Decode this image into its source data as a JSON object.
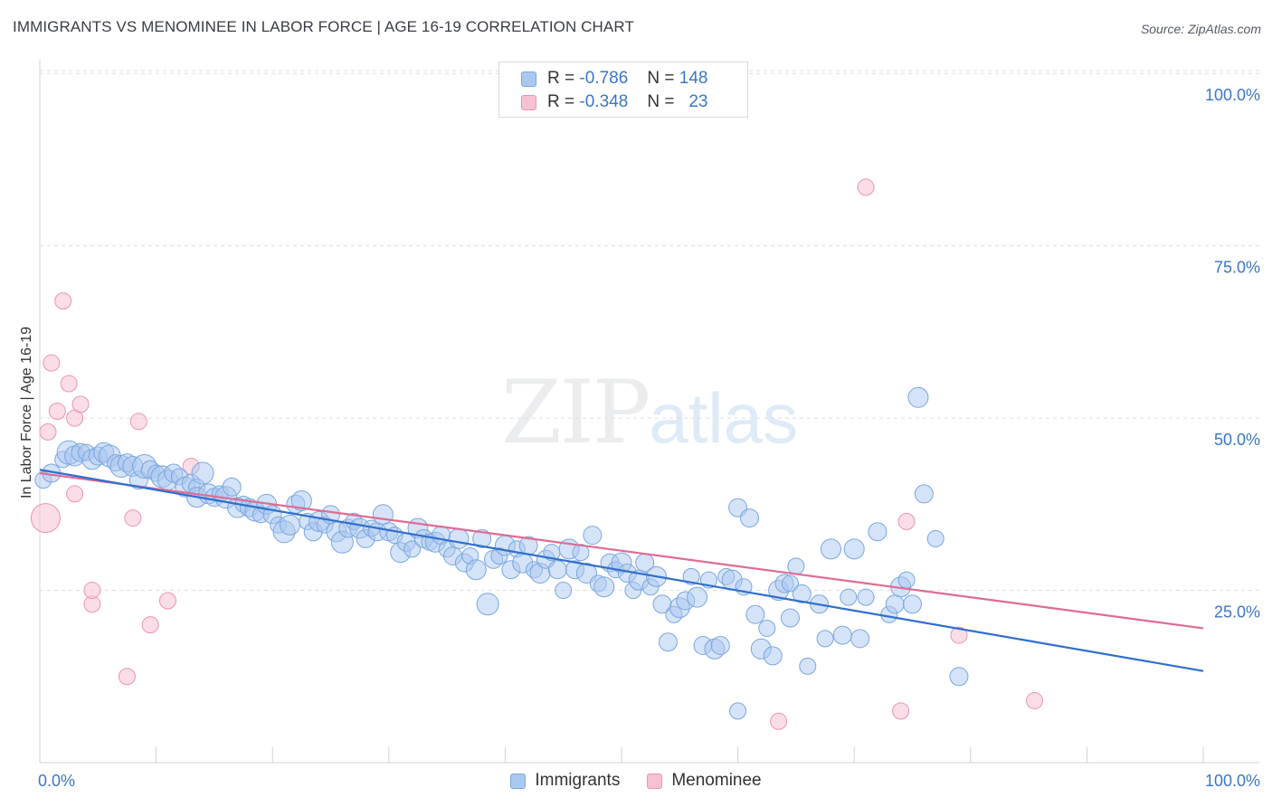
{
  "title": "IMMIGRANTS VS MENOMINEE IN LABOR FORCE | AGE 16-19 CORRELATION CHART",
  "source": "Source: ZipAtlas.com",
  "watermark": {
    "part1": "ZIP",
    "part2": "atlas"
  },
  "legend": {
    "rows": [
      {
        "r_label": "R =",
        "r_value": "-0.786",
        "n_label": "N =",
        "n_value": "148"
      },
      {
        "r_label": "R =",
        "r_value": "-0.348",
        "n_label": "N =",
        "n_value": "23"
      }
    ]
  },
  "bottom_legend": {
    "immigrants": "Immigrants",
    "menominee": "Menominee"
  },
  "colors": {
    "immigrants_fill": "#a9c8ef",
    "immigrants_stroke": "#7aa6df",
    "immigrants_line": "#2f6fcc",
    "menominee_fill": "#f6c1d3",
    "menominee_stroke": "#ec94b2",
    "menominee_line": "#e06a94",
    "tick_label": "#3b76c7",
    "grid": "#dcdfe4"
  },
  "chart_data": {
    "type": "scatter",
    "title": "IMMIGRANTS VS MENOMINEE IN LABOR FORCE | AGE 16-19 CORRELATION CHART",
    "xlabel": "",
    "ylabel": "In Labor Force | Age 16-19",
    "xlim": [
      0,
      100
    ],
    "ylim": [
      0,
      102
    ],
    "x_tick_labels": [
      "0.0%",
      "100.0%"
    ],
    "y_ticks": [
      25,
      50,
      75,
      100
    ],
    "y_tick_labels": [
      "25.0%",
      "50.0%",
      "75.0%",
      "100.0%"
    ],
    "grid": true,
    "legend_position": "top-center",
    "series": [
      {
        "name": "Immigrants",
        "r": -0.786,
        "n": 148,
        "trend": {
          "x0": 0,
          "y0": 42.5,
          "x1": 100,
          "y1": 13.3
        },
        "points": [
          [
            0.3,
            41,
            9
          ],
          [
            1,
            42,
            10
          ],
          [
            2,
            44,
            9
          ],
          [
            2.5,
            45,
            13
          ],
          [
            3,
            44.5,
            11
          ],
          [
            3.5,
            45,
            10
          ],
          [
            4,
            45,
            9
          ],
          [
            4.5,
            44,
            11
          ],
          [
            5,
            44.5,
            10
          ],
          [
            5.5,
            45,
            11
          ],
          [
            6,
            44.5,
            12
          ],
          [
            6.5,
            43.5,
            9
          ],
          [
            7,
            43,
            12
          ],
          [
            7.5,
            43.5,
            10
          ],
          [
            8,
            43,
            11
          ],
          [
            8.5,
            41,
            10
          ],
          [
            9,
            43,
            13
          ],
          [
            9.5,
            42.5,
            10
          ],
          [
            10,
            42,
            9
          ],
          [
            10.5,
            41.5,
            12
          ],
          [
            11,
            41,
            11
          ],
          [
            11.5,
            42,
            10
          ],
          [
            12,
            41.5,
            9
          ],
          [
            12.5,
            40,
            11
          ],
          [
            13,
            40.5,
            10
          ],
          [
            13.5,
            40,
            9
          ],
          [
            13.5,
            38.5,
            11
          ],
          [
            14,
            42,
            12
          ],
          [
            14.5,
            39,
            11
          ],
          [
            15,
            38.5,
            10
          ],
          [
            15.5,
            39,
            9
          ],
          [
            16,
            38.5,
            12
          ],
          [
            16.5,
            40,
            10
          ],
          [
            17,
            37,
            11
          ],
          [
            17.5,
            37.5,
            9
          ],
          [
            18,
            37,
            10
          ],
          [
            18.5,
            36.5,
            11
          ],
          [
            19,
            36,
            9
          ],
          [
            19.5,
            37.5,
            11
          ],
          [
            20,
            36,
            10
          ],
          [
            20.5,
            34.5,
            9
          ],
          [
            21,
            33.5,
            12
          ],
          [
            21.5,
            34.5,
            11
          ],
          [
            22,
            37.5,
            10
          ],
          [
            22.5,
            38,
            11
          ],
          [
            23,
            35,
            9
          ],
          [
            23.5,
            33.5,
            10
          ],
          [
            24,
            35,
            11
          ],
          [
            24.5,
            34.5,
            9
          ],
          [
            25,
            36,
            10
          ],
          [
            25.5,
            33.5,
            11
          ],
          [
            26,
            32,
            12
          ],
          [
            26.5,
            34,
            10
          ],
          [
            27,
            35,
            9
          ],
          [
            27.5,
            34,
            11
          ],
          [
            28,
            32.5,
            10
          ],
          [
            28.5,
            34,
            9
          ],
          [
            29,
            33.5,
            10
          ],
          [
            29.5,
            36,
            11
          ],
          [
            30,
            33.5,
            10
          ],
          [
            30.5,
            33,
            9
          ],
          [
            31,
            30.5,
            11
          ],
          [
            31.5,
            32,
            10
          ],
          [
            32,
            31,
            9
          ],
          [
            32.5,
            34,
            11
          ],
          [
            33,
            32.5,
            10
          ],
          [
            33.5,
            32,
            9
          ],
          [
            34,
            32,
            11
          ],
          [
            34.5,
            33,
            10
          ],
          [
            35,
            31,
            9
          ],
          [
            35.5,
            30,
            10
          ],
          [
            36,
            32.5,
            11
          ],
          [
            36.5,
            29,
            10
          ],
          [
            37,
            30,
            9
          ],
          [
            37.5,
            28,
            11
          ],
          [
            38,
            32.5,
            10
          ],
          [
            38.5,
            23,
            12
          ],
          [
            39,
            29.5,
            10
          ],
          [
            39.5,
            30,
            9
          ],
          [
            40,
            31.5,
            11
          ],
          [
            40.5,
            28,
            10
          ],
          [
            41,
            31,
            9
          ],
          [
            41.5,
            29,
            11
          ],
          [
            42,
            31.5,
            10
          ],
          [
            42.5,
            28,
            9
          ],
          [
            43,
            27.5,
            11
          ],
          [
            43.5,
            29.5,
            10
          ],
          [
            44,
            30.5,
            9
          ],
          [
            44.5,
            28,
            10
          ],
          [
            45,
            25,
            9
          ],
          [
            45.5,
            31,
            11
          ],
          [
            46,
            28,
            10
          ],
          [
            46.5,
            30.5,
            9
          ],
          [
            47,
            27.5,
            11
          ],
          [
            47.5,
            33,
            10
          ],
          [
            48,
            26,
            9
          ],
          [
            48.5,
            25.5,
            11
          ],
          [
            49,
            29,
            10
          ],
          [
            49.5,
            28,
            9
          ],
          [
            50,
            29,
            11
          ],
          [
            50.5,
            27.5,
            10
          ],
          [
            51,
            25,
            9
          ],
          [
            51.5,
            26.5,
            11
          ],
          [
            52,
            29,
            10
          ],
          [
            52.5,
            25.5,
            9
          ],
          [
            53,
            27,
            11
          ],
          [
            53.5,
            23,
            10
          ],
          [
            54,
            17.5,
            10
          ],
          [
            54.5,
            21.5,
            9
          ],
          [
            55,
            22.5,
            11
          ],
          [
            55.5,
            23.5,
            10
          ],
          [
            56,
            27,
            9
          ],
          [
            56.5,
            24,
            11
          ],
          [
            57,
            17,
            10
          ],
          [
            57.5,
            26.5,
            9
          ],
          [
            58,
            16.5,
            11
          ],
          [
            58.5,
            17,
            10
          ],
          [
            59,
            27,
            9
          ],
          [
            59.5,
            26.5,
            11
          ],
          [
            60,
            37,
            10
          ],
          [
            60.5,
            25.5,
            9
          ],
          [
            61,
            35.5,
            10
          ],
          [
            61.5,
            21.5,
            10
          ],
          [
            62,
            16.5,
            11
          ],
          [
            62.5,
            19.5,
            9
          ],
          [
            63,
            15.5,
            10
          ],
          [
            63.5,
            25,
            11
          ],
          [
            64,
            26,
            10
          ],
          [
            64.5,
            26,
            9
          ],
          [
            64.5,
            21,
            10
          ],
          [
            65,
            28.5,
            9
          ],
          [
            65.5,
            24.5,
            10
          ],
          [
            66,
            14,
            9
          ],
          [
            67,
            23,
            10
          ],
          [
            67.5,
            18,
            9
          ],
          [
            68,
            31,
            11
          ],
          [
            69,
            18.5,
            10
          ],
          [
            69.5,
            24,
            9
          ],
          [
            70,
            31,
            11
          ],
          [
            70.5,
            18,
            10
          ],
          [
            71,
            24,
            9
          ],
          [
            72,
            33.5,
            10
          ],
          [
            73,
            21.5,
            9
          ],
          [
            73.5,
            23,
            10
          ],
          [
            74,
            25.5,
            11
          ],
          [
            74.5,
            26.5,
            9
          ],
          [
            75,
            23,
            10
          ],
          [
            75.5,
            53,
            11
          ],
          [
            76,
            39,
            10
          ],
          [
            77,
            32.5,
            9
          ],
          [
            79,
            12.5,
            10
          ],
          [
            60,
            7.5,
            9
          ]
        ]
      },
      {
        "name": "Menominee",
        "r": -0.348,
        "n": 23,
        "trend": {
          "x0": 0,
          "y0": 42.0,
          "x1": 100,
          "y1": 19.5
        },
        "points": [
          [
            0.5,
            35.5,
            16
          ],
          [
            0.7,
            48,
            9
          ],
          [
            1,
            58,
            9
          ],
          [
            1.5,
            51,
            9
          ],
          [
            2,
            67,
            9
          ],
          [
            2.5,
            55,
            9
          ],
          [
            3,
            50,
            9
          ],
          [
            3.5,
            52,
            9
          ],
          [
            3,
            39,
            9
          ],
          [
            4.5,
            23,
            9
          ],
          [
            4.5,
            25,
            9
          ],
          [
            7.5,
            12.5,
            9
          ],
          [
            8,
            35.5,
            9
          ],
          [
            8.5,
            49.5,
            9
          ],
          [
            9.5,
            20,
            9
          ],
          [
            11,
            23.5,
            9
          ],
          [
            13,
            43,
            9
          ],
          [
            63.5,
            6,
            9
          ],
          [
            71,
            83.5,
            9
          ],
          [
            74,
            7.5,
            9
          ],
          [
            74.5,
            35,
            9
          ],
          [
            79,
            18.5,
            9
          ],
          [
            85.5,
            9,
            9
          ]
        ]
      }
    ]
  }
}
